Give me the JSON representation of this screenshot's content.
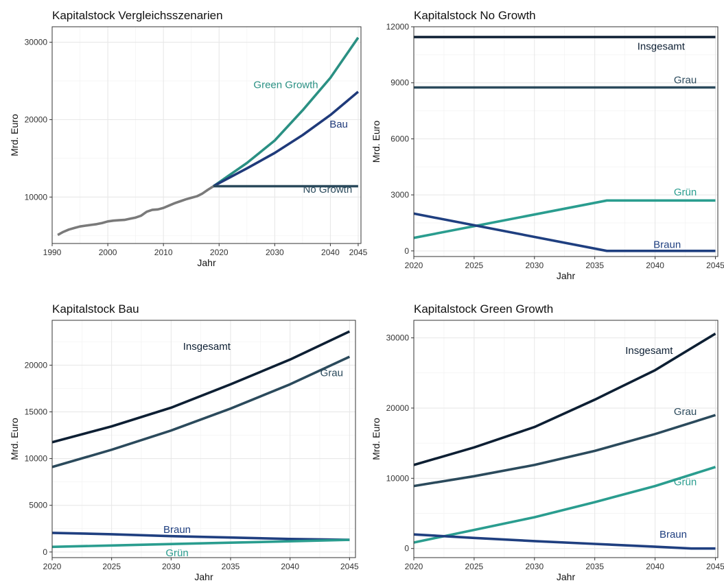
{
  "colors": {
    "insgesamt": "#0d1f33",
    "grau": "#2b4a5c",
    "braun": "#1f3f80",
    "gruen": "#2a9d8f",
    "bau": "#1f3a7a",
    "green_growth": "#2a9083",
    "no_growth": "#2b4a5c",
    "historic": "#7a7a7a"
  },
  "chart_data": [
    {
      "type": "line",
      "title": "Kapitalstock Vergleichsszenarien",
      "xlabel": "Jahr",
      "ylabel": "Mrd. Euro",
      "xlim": [
        1990,
        2045.5
      ],
      "ylim": [
        4000,
        32000
      ],
      "xticks": [
        1990,
        2000,
        2010,
        2020,
        2030,
        2040,
        2045
      ],
      "yticks": [
        10000,
        20000,
        30000
      ],
      "grid": true,
      "series": [
        {
          "x": [
            1991,
            1992,
            1993,
            1994,
            1995,
            1996,
            1997,
            1998,
            1999,
            2000,
            2001,
            2002,
            2003,
            2004,
            2005,
            2006,
            2007,
            2008,
            2009,
            2010,
            2011,
            2012,
            2013,
            2014,
            2015,
            2016,
            2017,
            2018,
            2019
          ],
          "y": [
            5100,
            5500,
            5800,
            6000,
            6200,
            6300,
            6400,
            6500,
            6650,
            6850,
            6950,
            7000,
            7050,
            7200,
            7350,
            7600,
            8100,
            8350,
            8400,
            8600,
            8900,
            9200,
            9450,
            9700,
            9900,
            10100,
            10450,
            10950,
            11400
          ],
          "color_key": "historic"
        },
        {
          "name": "Green Growth",
          "x": [
            2019,
            2020,
            2025,
            2030,
            2035,
            2040,
            2045
          ],
          "y": [
            11400,
            11900,
            14400,
            17300,
            21200,
            25400,
            30600
          ],
          "color_key": "green_growth"
        },
        {
          "name": "Bau",
          "x": [
            2019,
            2020,
            2025,
            2030,
            2035,
            2040,
            2045
          ],
          "y": [
            11400,
            11800,
            13700,
            15700,
            18000,
            20600,
            23600
          ],
          "color_key": "bau"
        },
        {
          "name": "No Growth",
          "x": [
            2019,
            2045
          ],
          "y": [
            11400,
            11400
          ],
          "color_key": "no_growth"
        }
      ],
      "labels": [
        {
          "text": "Green Growth",
          "x": 2032,
          "y": 24500,
          "color_key": "green_growth"
        },
        {
          "text": "Bau",
          "x": 2041.5,
          "y": 19400,
          "color_key": "bau"
        },
        {
          "text": "No Growth",
          "x": 2039.5,
          "y": 11000,
          "color_key": "no_growth"
        }
      ]
    },
    {
      "type": "line",
      "title": "Kapitalstock No Growth",
      "xlabel": "Jahr",
      "ylabel": "Mrd. Euro",
      "xlim": [
        2020,
        2045.2
      ],
      "ylim": [
        -300,
        12000
      ],
      "xticks": [
        2020,
        2025,
        2030,
        2035,
        2040,
        2045
      ],
      "yticks": [
        0,
        3000,
        6000,
        9000,
        12000
      ],
      "grid": true,
      "series": [
        {
          "name": "Insgesamt",
          "x": [
            2020,
            2045
          ],
          "y": [
            11450,
            11450
          ],
          "color_key": "insgesamt"
        },
        {
          "name": "Grau",
          "x": [
            2020,
            2045
          ],
          "y": [
            8750,
            8750
          ],
          "color_key": "grau"
        },
        {
          "name": "Grün",
          "x": [
            2020,
            2036,
            2045
          ],
          "y": [
            700,
            2700,
            2700
          ],
          "color_key": "gruen"
        },
        {
          "name": "Braun",
          "x": [
            2020,
            2036,
            2045
          ],
          "y": [
            2000,
            0,
            0
          ],
          "color_key": "braun"
        }
      ],
      "labels": [
        {
          "text": "Insgesamt",
          "x": 2040.5,
          "y": 10950,
          "color_key": "insgesamt"
        },
        {
          "text": "Grau",
          "x": 2042.5,
          "y": 9150,
          "color_key": "grau"
        },
        {
          "text": "Grün",
          "x": 2042.5,
          "y": 3150,
          "color_key": "gruen"
        },
        {
          "text": "Braun",
          "x": 2041,
          "y": 350,
          "color_key": "braun"
        }
      ]
    },
    {
      "type": "line",
      "title": "Kapitalstock Bau",
      "xlabel": "Jahr",
      "ylabel": "Mrd. Euro",
      "xlim": [
        2020,
        2045.5
      ],
      "ylim": [
        -600,
        24800
      ],
      "xticks": [
        2020,
        2025,
        2030,
        2035,
        2040,
        2045
      ],
      "yticks": [
        0,
        5000,
        10000,
        15000,
        20000
      ],
      "grid": true,
      "series": [
        {
          "name": "Insgesamt",
          "x": [
            2020,
            2025,
            2030,
            2035,
            2040,
            2045
          ],
          "y": [
            11750,
            13450,
            15450,
            17950,
            20600,
            23600
          ],
          "color_key": "insgesamt"
        },
        {
          "name": "Grau",
          "x": [
            2020,
            2025,
            2030,
            2035,
            2040,
            2045
          ],
          "y": [
            9100,
            10950,
            13000,
            15350,
            17950,
            20900
          ],
          "color_key": "grau"
        },
        {
          "name": "Braun",
          "x": [
            2020,
            2025,
            2030,
            2035,
            2040,
            2045
          ],
          "y": [
            2050,
            1900,
            1700,
            1550,
            1400,
            1300
          ],
          "color_key": "braun"
        },
        {
          "name": "Grün",
          "x": [
            2020,
            2025,
            2030,
            2035,
            2040,
            2045
          ],
          "y": [
            550,
            700,
            850,
            1000,
            1150,
            1300
          ],
          "color_key": "gruen"
        }
      ],
      "labels": [
        {
          "text": "Insgesamt",
          "x": 2033,
          "y": 22000,
          "color_key": "insgesamt"
        },
        {
          "text": "Grau",
          "x": 2043.5,
          "y": 19200,
          "color_key": "grau"
        },
        {
          "text": "Braun",
          "x": 2030.5,
          "y": 2400,
          "color_key": "braun"
        },
        {
          "text": "Grün",
          "x": 2030.5,
          "y": -100,
          "color_key": "gruen"
        }
      ]
    },
    {
      "type": "line",
      "title": "Kapitalstock Green Growth",
      "xlabel": "Jahr",
      "ylabel": "Mrd. Euro",
      "xlim": [
        2020,
        2045.2
      ],
      "ylim": [
        -1300,
        32500
      ],
      "xticks": [
        2020,
        2025,
        2030,
        2035,
        2040,
        2045
      ],
      "yticks": [
        0,
        10000,
        20000,
        30000
      ],
      "grid": true,
      "series": [
        {
          "name": "Insgesamt",
          "x": [
            2020,
            2025,
            2030,
            2035,
            2040,
            2045
          ],
          "y": [
            11900,
            14400,
            17300,
            21200,
            25400,
            30600
          ],
          "color_key": "insgesamt"
        },
        {
          "name": "Grau",
          "x": [
            2020,
            2025,
            2030,
            2035,
            2040,
            2045
          ],
          "y": [
            8900,
            10300,
            11900,
            13900,
            16300,
            19000
          ],
          "color_key": "grau"
        },
        {
          "name": "Grün",
          "x": [
            2020,
            2025,
            2030,
            2035,
            2040,
            2045
          ],
          "y": [
            850,
            2650,
            4450,
            6600,
            8900,
            11600
          ],
          "color_key": "gruen"
        },
        {
          "name": "Braun",
          "x": [
            2020,
            2025,
            2030,
            2035,
            2040,
            2043,
            2045
          ],
          "y": [
            2000,
            1500,
            1050,
            650,
            250,
            0,
            0
          ],
          "color_key": "braun"
        }
      ],
      "labels": [
        {
          "text": "Insgesamt",
          "x": 2039.5,
          "y": 28200,
          "color_key": "insgesamt"
        },
        {
          "text": "Grau",
          "x": 2042.5,
          "y": 19500,
          "color_key": "grau"
        },
        {
          "text": "Grün",
          "x": 2042.5,
          "y": 9500,
          "color_key": "gruen"
        },
        {
          "text": "Braun",
          "x": 2041.5,
          "y": 2000,
          "color_key": "braun"
        }
      ]
    }
  ]
}
